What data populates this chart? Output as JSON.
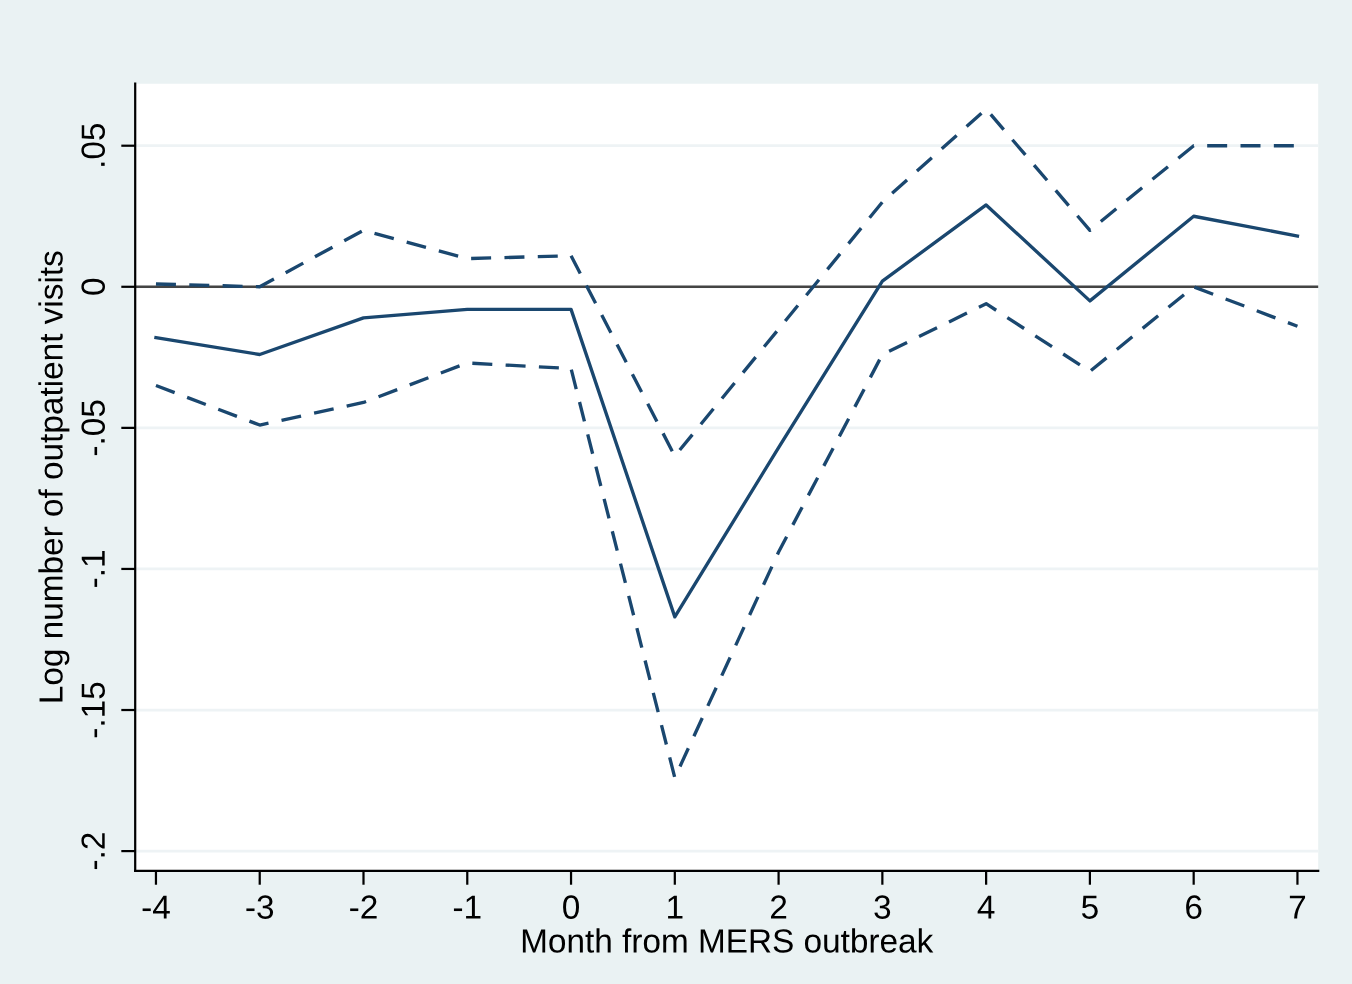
{
  "chart_data": {
    "type": "line",
    "xlabel": "Month from MERS outbreak",
    "ylabel": "Log number of outpatient visits",
    "x": [
      -4,
      -3,
      -2,
      -1,
      0,
      1,
      2,
      3,
      4,
      5,
      6,
      7
    ],
    "series": [
      {
        "color": "#1a476f",
        "line_style": "solid",
        "values": [
          -0.018,
          -0.024,
          -0.011,
          -0.008,
          -0.008,
          -0.117,
          -0.057,
          0.002,
          0.029,
          -0.005,
          0.025,
          0.018
        ]
      },
      {
        "color": "#1a476f",
        "line_style": "dashed",
        "values": [
          0.001,
          0.0,
          0.02,
          0.01,
          0.011,
          -0.06,
          -0.015,
          0.03,
          0.063,
          0.02,
          0.05,
          0.05
        ]
      },
      {
        "color": "#1a476f",
        "line_style": "dashed",
        "values": [
          -0.035,
          -0.049,
          -0.041,
          -0.027,
          -0.029,
          -0.174,
          -0.094,
          -0.024,
          -0.006,
          -0.03,
          0.0,
          -0.014
        ]
      }
    ],
    "xlim": [
      -4.2,
      7.2
    ],
    "ylim": [
      -0.207,
      0.072
    ],
    "xticks": [
      -4,
      -3,
      -2,
      -1,
      0,
      1,
      2,
      3,
      4,
      5,
      6,
      7
    ],
    "yticks": [
      {
        "value": -0.2,
        "label": "-.2"
      },
      {
        "value": -0.15,
        "label": "-.15"
      },
      {
        "value": -0.1,
        "label": "-.1"
      },
      {
        "value": -0.05,
        "label": "-.05"
      },
      {
        "value": 0,
        "label": "0"
      },
      {
        "value": 0.05,
        "label": ".05"
      }
    ],
    "ref_lines": [
      {
        "axis": "y",
        "value": 0,
        "color": "#444444"
      }
    ],
    "grid": "y",
    "marker": "none"
  }
}
